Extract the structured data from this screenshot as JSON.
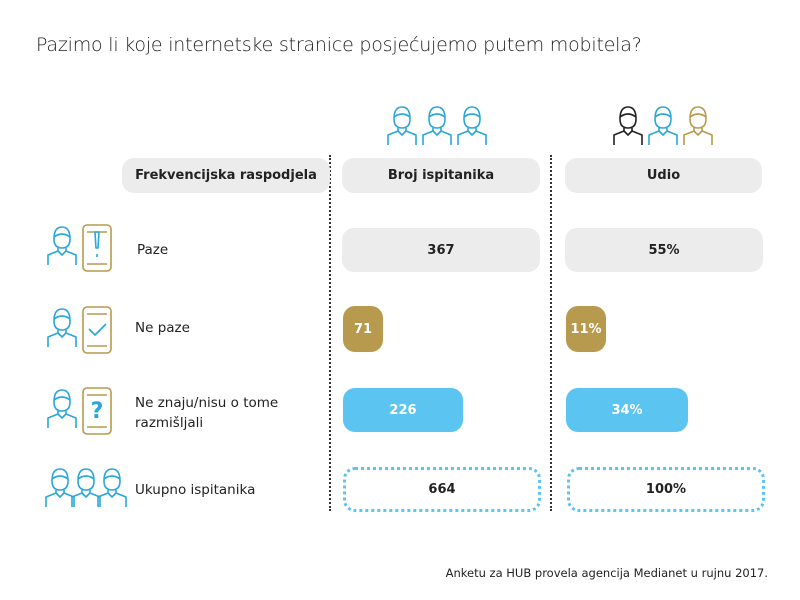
{
  "title": "Pazimo li koje internetske stranice posjećujemo putem mobitela?",
  "columns": [
    "Frekvencijska raspodjela",
    "Broj ispitanika",
    "Udio"
  ],
  "rows": [
    {
      "label": "Paze",
      "count": "367",
      "share": "55%"
    },
    {
      "label": "Ne paze",
      "count": "71",
      "share": "11%"
    },
    {
      "label": "Ne znaju/nisu o tome razmišljali",
      "count": "226",
      "share": "34%"
    },
    {
      "label": "Ukupno ispitanika",
      "count": "664",
      "share": "100%"
    }
  ],
  "footnote": "Anketu za HUB provela agencija Medianet u rujnu 2017."
}
